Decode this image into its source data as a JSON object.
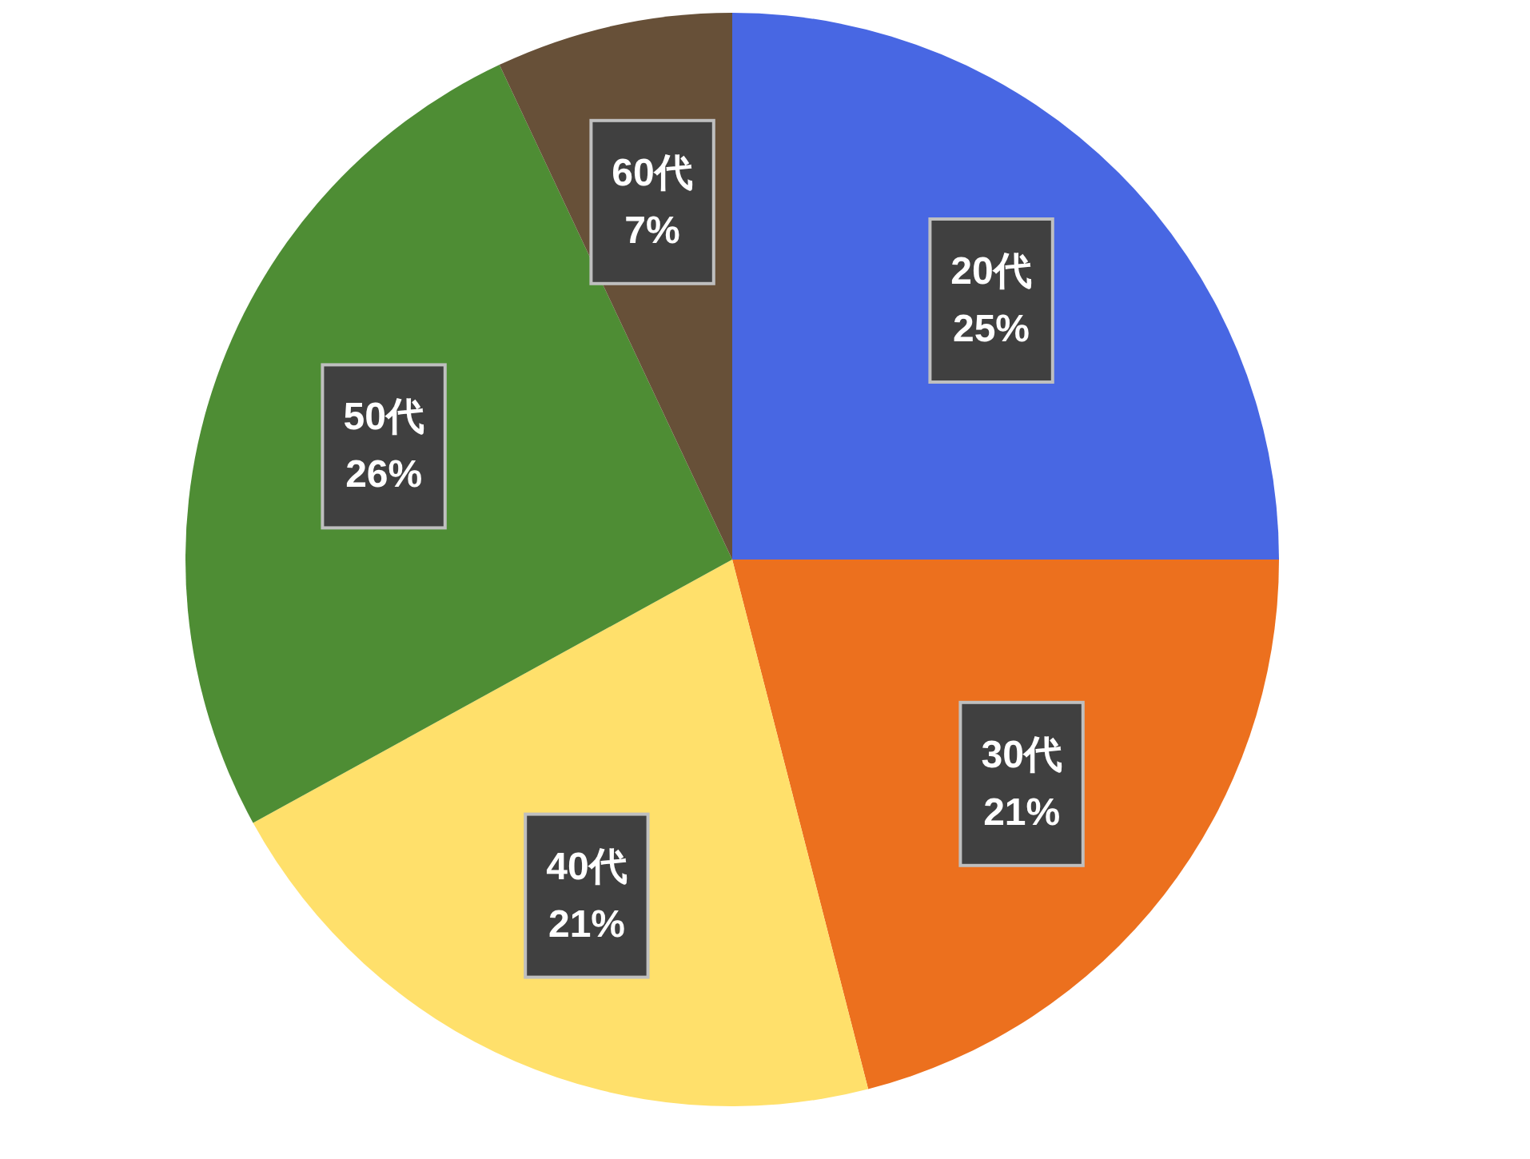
{
  "chart_data": {
    "type": "pie",
    "categories": [
      "20代",
      "30代",
      "40代",
      "50代",
      "60代"
    ],
    "values": [
      25,
      21,
      21,
      26,
      7
    ],
    "colors": [
      "#4867e3",
      "#ec701e",
      "#ffe06b",
      "#4e8d34",
      "#675038"
    ],
    "value_labels": [
      "25%",
      "21%",
      "21%",
      "26%",
      "7%"
    ]
  }
}
